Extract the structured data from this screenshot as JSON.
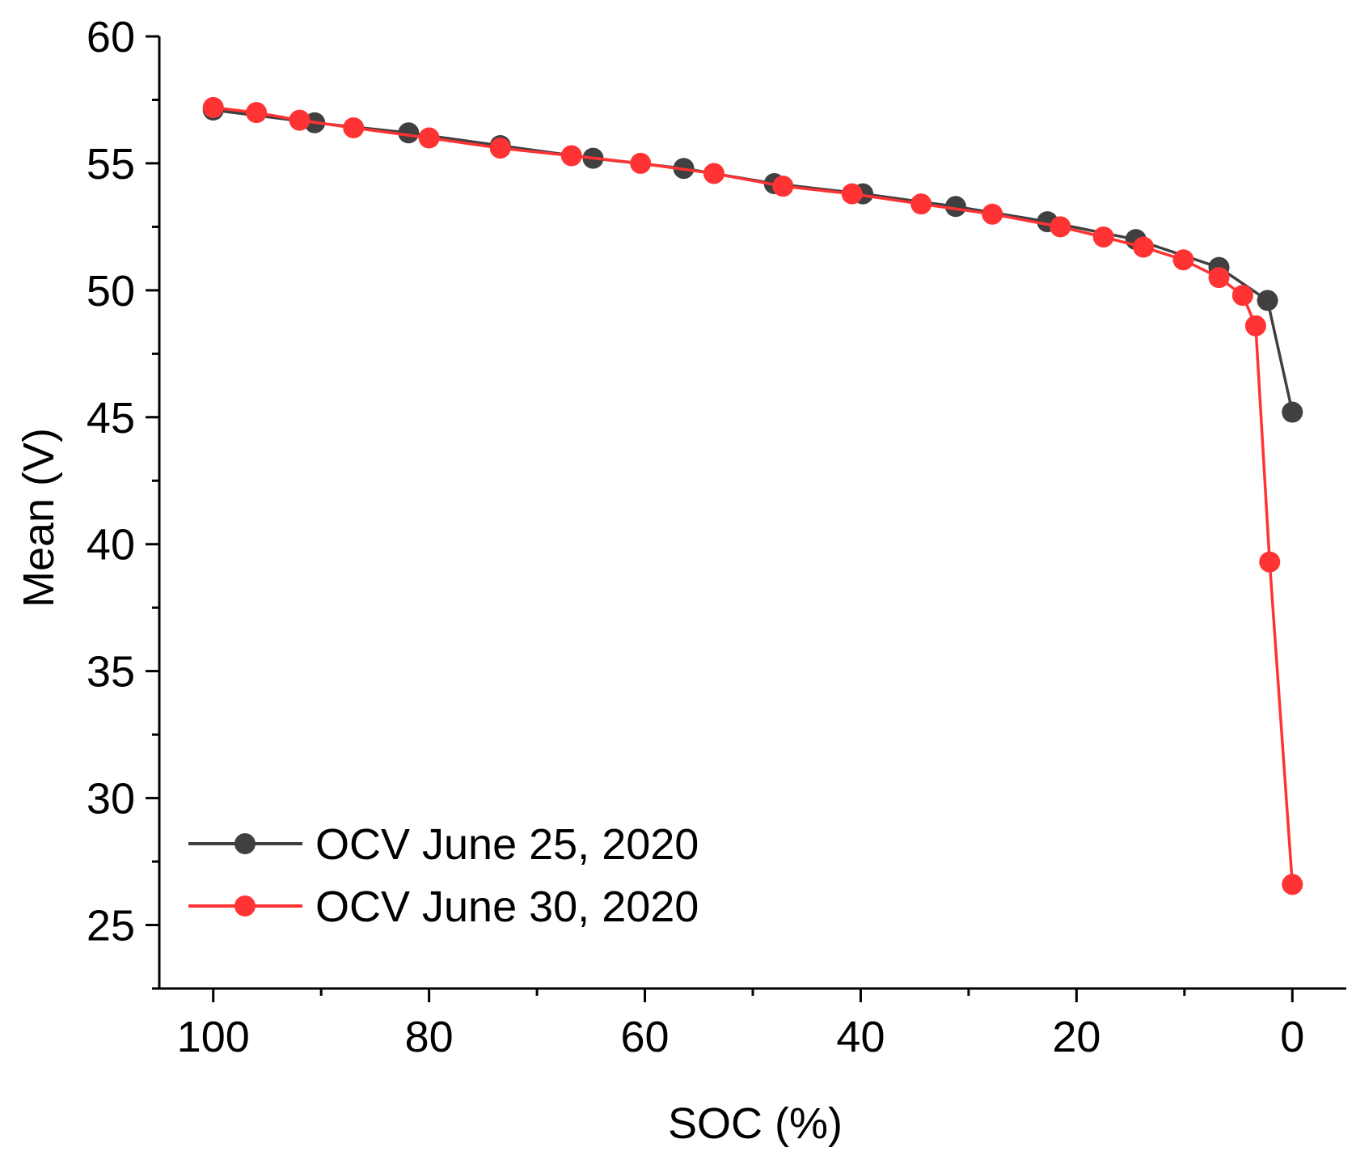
{
  "chart_data": {
    "type": "line",
    "title": "",
    "xlabel": "SOC (%)",
    "ylabel": "Mean (V)",
    "xlim": [
      105,
      -5
    ],
    "ylim": [
      22.5,
      60
    ],
    "x_ticks": [
      100,
      80,
      60,
      40,
      20,
      0
    ],
    "x_tick_labels": [
      "100",
      "80",
      "60",
      "40",
      "20",
      "0"
    ],
    "y_ticks": [
      25,
      30,
      35,
      40,
      45,
      50,
      55,
      60
    ],
    "y_tick_labels": [
      "25",
      "30",
      "35",
      "40",
      "45",
      "50",
      "55",
      "60"
    ],
    "grid": false,
    "legend_position": "bottom-left",
    "series": [
      {
        "name": "OCV June 25, 2020",
        "color": "#404040",
        "x": [
          100,
          90.6,
          81.9,
          73.4,
          64.8,
          56.4,
          48.0,
          39.8,
          31.2,
          22.7,
          14.5,
          6.8,
          2.3,
          0
        ],
        "y": [
          57.1,
          56.6,
          56.2,
          55.7,
          55.2,
          54.8,
          54.2,
          53.8,
          53.3,
          52.7,
          52.0,
          50.9,
          49.6,
          45.2
        ]
      },
      {
        "name": "OCV June 30, 2020",
        "color": "#ff3333",
        "x": [
          100,
          96.0,
          92.0,
          87.0,
          80.0,
          73.4,
          66.8,
          60.4,
          53.6,
          47.2,
          40.8,
          34.4,
          27.8,
          21.5,
          17.5,
          13.8,
          10.1,
          6.8,
          4.6,
          3.4,
          2.1,
          0
        ],
        "y": [
          57.2,
          57.0,
          56.7,
          56.4,
          56.0,
          55.6,
          55.3,
          55.0,
          54.6,
          54.1,
          53.8,
          53.4,
          53.0,
          52.5,
          52.1,
          51.7,
          51.2,
          50.5,
          49.8,
          48.6,
          39.3,
          26.6
        ]
      }
    ]
  }
}
